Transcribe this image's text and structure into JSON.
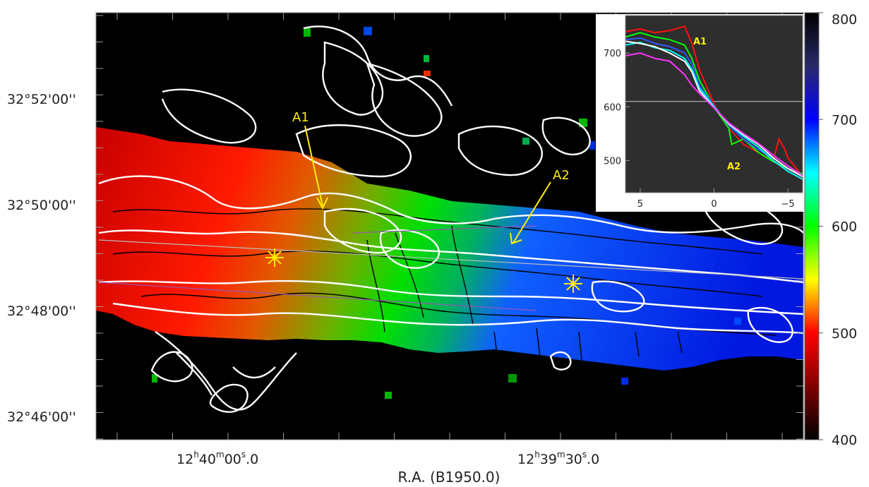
{
  "chart_data": [
    {
      "type": "heatmap",
      "xlabel": "R.A. (B1950.0)",
      "ylabel": "",
      "x_ticks": [
        {
          "label_main": "12",
          "sup_h": "h",
          "label_min": "40",
          "sup_m": "m",
          "label_sec": "00",
          "sup_s": "s",
          "label_frac": ".0"
        },
        {
          "label_main": "12",
          "sup_h": "h",
          "label_min": "39",
          "sup_m": "m",
          "label_sec": "30",
          "sup_s": "s",
          "label_frac": ".0"
        }
      ],
      "y_ticks": [
        "32°52'00''",
        "32°50'00''",
        "32°48'00''",
        "32°46'00''"
      ],
      "colorbar": {
        "range": [
          400,
          800
        ],
        "ticks": [
          800,
          700,
          600,
          500,
          400
        ],
        "colors": [
          "#000000",
          "#2a2a6a",
          "#0000ff",
          "#00ffff",
          "#00ff00",
          "#ffff00",
          "#ff0000",
          "#800000",
          "#000000"
        ]
      },
      "velocity_gradient": {
        "east_value": 700,
        "west_value": 500
      },
      "annotations": [
        {
          "label": "A1"
        },
        {
          "label": "A2"
        }
      ],
      "markers": [
        "star",
        "star"
      ],
      "colors": {
        "arrow": "#ffee00",
        "contours_white": "#ffffff",
        "contours_black": "#000000"
      }
    },
    {
      "type": "line",
      "title": "",
      "xlabel": "",
      "ylabel": "",
      "xlim": [
        6,
        -6
      ],
      "ylim": [
        440,
        770
      ],
      "x_ticks": [
        5,
        0,
        -5
      ],
      "y_ticks": [
        500,
        600,
        700
      ],
      "reference_line": 610,
      "labels": [
        "A1",
        "A2"
      ],
      "series": [
        {
          "color": "#ff1010",
          "x": [
            6,
            5,
            4,
            3,
            2,
            1.5,
            1,
            0,
            -1,
            -2,
            -3,
            -4,
            -4.4,
            -4.8,
            -5,
            -6
          ],
          "y": [
            740,
            745,
            738,
            742,
            750,
            718,
            670,
            605,
            560,
            530,
            515,
            500,
            540,
            520,
            505,
            470
          ]
        },
        {
          "color": "#00ff00",
          "x": [
            6,
            5,
            4,
            3,
            2,
            1.5,
            1,
            0,
            -1,
            -1.2,
            -2,
            -3,
            -4,
            -5,
            -6
          ],
          "y": [
            730,
            738,
            730,
            725,
            715,
            690,
            650,
            600,
            560,
            530,
            540,
            515,
            498,
            485,
            475
          ]
        },
        {
          "color": "#3355ff",
          "x": [
            6,
            5,
            4,
            3,
            2,
            1.5,
            1,
            0,
            -1,
            -2,
            -3,
            -4,
            -5,
            -6
          ],
          "y": [
            725,
            728,
            718,
            712,
            700,
            680,
            640,
            602,
            565,
            540,
            520,
            505,
            485,
            470
          ]
        },
        {
          "color": "#00ffff",
          "x": [
            6,
            5,
            4,
            3,
            2,
            1.5,
            1,
            0,
            -1,
            -2,
            -3,
            -4,
            -5,
            -6
          ],
          "y": [
            715,
            720,
            710,
            705,
            690,
            670,
            635,
            600,
            568,
            545,
            525,
            500,
            480,
            465
          ]
        },
        {
          "color": "#ffffff",
          "x": [
            6,
            5,
            4,
            3,
            2,
            1.5,
            1,
            0,
            -1,
            -2,
            -3,
            -4,
            -5,
            -6
          ],
          "y": [
            722,
            718,
            712,
            700,
            685,
            665,
            630,
            598,
            568,
            548,
            530,
            505,
            485,
            470
          ]
        },
        {
          "color": "#ff33ff",
          "x": [
            6,
            5,
            4,
            3,
            2,
            1.5,
            1,
            0,
            -1,
            -2,
            -3,
            -4,
            -5,
            -6
          ],
          "y": [
            695,
            700,
            690,
            685,
            660,
            640,
            625,
            598,
            570,
            550,
            532,
            510,
            490,
            472
          ]
        }
      ]
    }
  ]
}
